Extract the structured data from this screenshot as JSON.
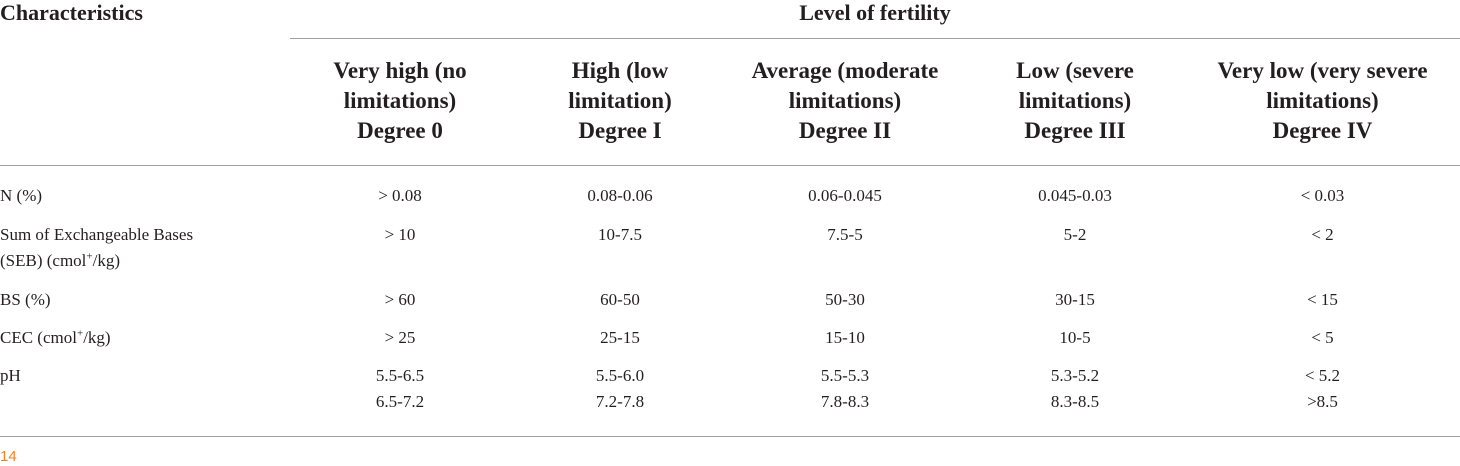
{
  "header": {
    "characteristics": "Characteristics",
    "level": "Level of fertility"
  },
  "columns": [
    {
      "line1": "Very high (no",
      "line2": "limitations)",
      "line3": "Degree 0"
    },
    {
      "line1": "High (low",
      "line2": "limitation)",
      "line3": "Degree I"
    },
    {
      "line1": "Average (moderate",
      "line2": "limitations)",
      "line3": "Degree II"
    },
    {
      "line1": "Low (severe",
      "line2": "limitations)",
      "line3": "Degree III"
    },
    {
      "line1": "Very low (very severe",
      "line2": "limitations)",
      "line3": "Degree IV"
    }
  ],
  "rows": [
    {
      "label": "N (%)",
      "values": [
        "> 0.08",
        "0.08-0.06",
        "0.06-0.045",
        "0.045-0.03",
        "< 0.03"
      ]
    },
    {
      "label_line1": "Sum of Exchangeable Bases",
      "label_line2_pre": "(SEB) (cmol",
      "label_sup": "+",
      "label_line2_post": "/kg)",
      "values": [
        "> 10",
        "10-7.5",
        "7.5-5",
        "5-2",
        "< 2"
      ]
    },
    {
      "label": "BS (%)",
      "values": [
        "> 60",
        "60-50",
        "50-30",
        "30-15",
        "< 15"
      ]
    },
    {
      "label_pre": "CEC (cmol",
      "label_sup": "+",
      "label_post": "/kg)",
      "values": [
        "> 25",
        "25-15",
        "15-10",
        "10-5",
        "< 5"
      ]
    },
    {
      "label": "pH",
      "values": [
        "5.5-6.5",
        "5.5-6.0",
        "5.5-5.3",
        "5.3-5.2",
        "< 5.2"
      ],
      "values2": [
        "6.5-7.2",
        "7.2-7.8",
        "7.8-8.3",
        "8.3-8.5",
        ">8.5"
      ]
    }
  ],
  "page_number": "14"
}
